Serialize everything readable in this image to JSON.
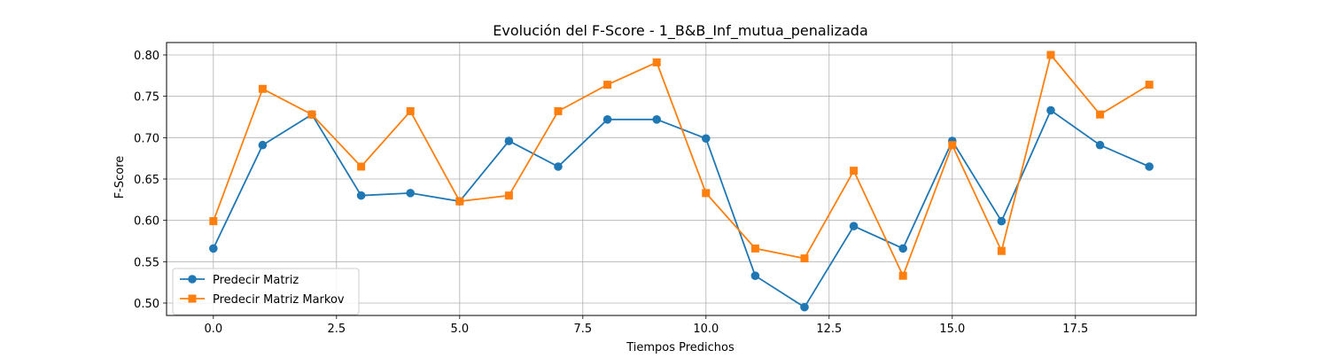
{
  "chart_data": {
    "type": "line",
    "title": "Evolución del F-Score - 1_B&B_Inf_mutua_penalizada",
    "xlabel": "Tiempos Predichos",
    "ylabel": "F-Score",
    "xlim": [
      -0.95,
      19.95
    ],
    "ylim": [
      0.485,
      0.815
    ],
    "x_ticks": [
      0.0,
      2.5,
      5.0,
      7.5,
      10.0,
      12.5,
      15.0,
      17.5
    ],
    "x_tick_labels": [
      "0.0",
      "2.5",
      "5.0",
      "7.5",
      "10.0",
      "12.5",
      "15.0",
      "17.5"
    ],
    "y_ticks": [
      0.5,
      0.55,
      0.6,
      0.65,
      0.7,
      0.75,
      0.8
    ],
    "y_tick_labels": [
      "0.50",
      "0.55",
      "0.60",
      "0.65",
      "0.70",
      "0.75",
      "0.80"
    ],
    "grid": true,
    "legend_position": "lower-left",
    "x": [
      0,
      1,
      2,
      3,
      4,
      5,
      6,
      7,
      8,
      9,
      10,
      11,
      12,
      13,
      14,
      15,
      16,
      17,
      18,
      19
    ],
    "series": [
      {
        "name": "Predecir Matriz",
        "color": "#1f77b4",
        "marker": "circle",
        "values": [
          0.566,
          0.691,
          0.728,
          0.63,
          0.633,
          0.623,
          0.696,
          0.665,
          0.722,
          0.722,
          0.699,
          0.533,
          0.495,
          0.593,
          0.566,
          0.696,
          0.599,
          0.733,
          0.691,
          0.665
        ]
      },
      {
        "name": "Predecir Matriz Markov",
        "color": "#ff7f0e",
        "marker": "square",
        "values": [
          0.599,
          0.759,
          0.728,
          0.665,
          0.732,
          0.623,
          0.63,
          0.732,
          0.764,
          0.791,
          0.633,
          0.566,
          0.554,
          0.66,
          0.533,
          0.691,
          0.563,
          0.8,
          0.728,
          0.764
        ]
      }
    ]
  }
}
